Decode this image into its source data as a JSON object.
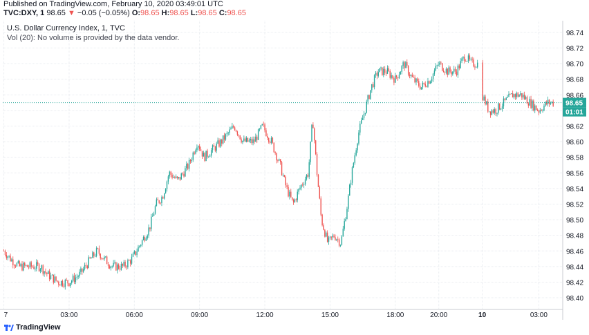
{
  "header": {
    "published": "Published on TradingView.com, February 10, 2020 03:49:01 UTC",
    "symbol": "TVC:DXY, 1",
    "last": "98.65",
    "change_arrow": "▼",
    "change": "−0.05 (−0.05%)",
    "o_label": "O:",
    "o_value": "98.65",
    "h_label": "H:",
    "h_value": "98.65",
    "l_label": "L:",
    "l_value": "98.65",
    "c_label": "C:",
    "c_value": "98.65"
  },
  "legend": {
    "title": "U.S. Dollar Currency Index, 1, TVC",
    "volume_note": "Vol (20): No volume is provided by the data vendor."
  },
  "footer": {
    "brand": "TradingView"
  },
  "colors": {
    "up": "#26a69a",
    "down": "#ef5350",
    "price_line": "#26a69a",
    "grid": "#e9ecf0"
  },
  "chart_data": {
    "type": "candlestick",
    "title": "U.S. Dollar Currency Index, 1, TVC",
    "ylim": [
      98.385,
      98.755
    ],
    "y_ticks": [
      "98.74",
      "98.72",
      "98.70",
      "98.68",
      "98.66",
      "98.64",
      "98.62",
      "98.60",
      "98.58",
      "98.56",
      "98.54",
      "98.52",
      "98.50",
      "98.48",
      "98.46",
      "98.44",
      "98.42",
      "98.40"
    ],
    "y_tick_values": [
      98.74,
      98.72,
      98.7,
      98.68,
      98.66,
      98.64,
      98.62,
      98.6,
      98.58,
      98.56,
      98.54,
      98.52,
      98.5,
      98.48,
      98.46,
      98.44,
      98.42,
      98.4
    ],
    "x_ticks": [
      "7",
      "03:00",
      "06:00",
      "09:00",
      "12:00",
      "15:00",
      "18:00",
      "20:00",
      "10",
      "03:00"
    ],
    "x_tick_hours": [
      0,
      3,
      6,
      9,
      12,
      15,
      18,
      20,
      22,
      24.6
    ],
    "x_hours_range": [
      -0.05,
      25.7
    ],
    "grid": true,
    "current_price": {
      "value": 98.65,
      "label": "98.65",
      "countdown": "01:01"
    },
    "price_path": [
      [
        0.0,
        98.46
      ],
      [
        0.3,
        98.45
      ],
      [
        0.7,
        98.44
      ],
      [
        1.2,
        98.44
      ],
      [
        1.7,
        98.44
      ],
      [
        2.0,
        98.43
      ],
      [
        2.5,
        98.42
      ],
      [
        3.0,
        98.42
      ],
      [
        3.5,
        98.43
      ],
      [
        4.0,
        98.45
      ],
      [
        4.3,
        98.46
      ],
      [
        4.6,
        98.45
      ],
      [
        5.0,
        98.44
      ],
      [
        5.5,
        98.44
      ],
      [
        5.9,
        98.45
      ],
      [
        6.3,
        98.47
      ],
      [
        6.7,
        98.49
      ],
      [
        7.0,
        98.52
      ],
      [
        7.3,
        98.53
      ],
      [
        7.6,
        98.56
      ],
      [
        8.0,
        98.55
      ],
      [
        8.5,
        98.57
      ],
      [
        8.9,
        98.6
      ],
      [
        9.2,
        98.58
      ],
      [
        9.6,
        98.59
      ],
      [
        10.0,
        98.6
      ],
      [
        10.3,
        98.61
      ],
      [
        10.6,
        98.62
      ],
      [
        11.0,
        98.6
      ],
      [
        11.5,
        98.6
      ],
      [
        11.9,
        98.62
      ],
      [
        12.3,
        98.6
      ],
      [
        12.7,
        98.57
      ],
      [
        13.0,
        98.54
      ],
      [
        13.3,
        98.52
      ],
      [
        13.6,
        98.54
      ],
      [
        14.0,
        98.56
      ],
      [
        14.2,
        98.63
      ],
      [
        14.4,
        98.56
      ],
      [
        14.6,
        98.5
      ],
      [
        14.9,
        98.47
      ],
      [
        15.2,
        98.48
      ],
      [
        15.5,
        98.47
      ],
      [
        15.8,
        98.52
      ],
      [
        16.0,
        98.56
      ],
      [
        16.3,
        98.61
      ],
      [
        16.6,
        98.64
      ],
      [
        16.9,
        98.67
      ],
      [
        17.2,
        98.69
      ],
      [
        17.6,
        98.69
      ],
      [
        18.0,
        98.68
      ],
      [
        18.4,
        98.7
      ],
      [
        18.8,
        98.68
      ],
      [
        19.2,
        98.67
      ],
      [
        19.6,
        98.68
      ],
      [
        20.0,
        98.7
      ],
      [
        20.4,
        98.69
      ],
      [
        20.8,
        98.69
      ],
      [
        21.2,
        98.71
      ],
      [
        21.5,
        98.7
      ],
      [
        21.8,
        98.7
      ],
      [
        22.0,
        98.66
      ],
      [
        22.3,
        98.64
      ],
      [
        22.6,
        98.64
      ],
      [
        23.0,
        98.65
      ],
      [
        23.4,
        98.66
      ],
      [
        23.8,
        98.66
      ],
      [
        24.2,
        98.65
      ],
      [
        24.6,
        98.64
      ],
      [
        25.0,
        98.65
      ],
      [
        25.3,
        98.65
      ]
    ],
    "gap_after_hour": 21.8,
    "gap_resume_hour": 22.0
  }
}
